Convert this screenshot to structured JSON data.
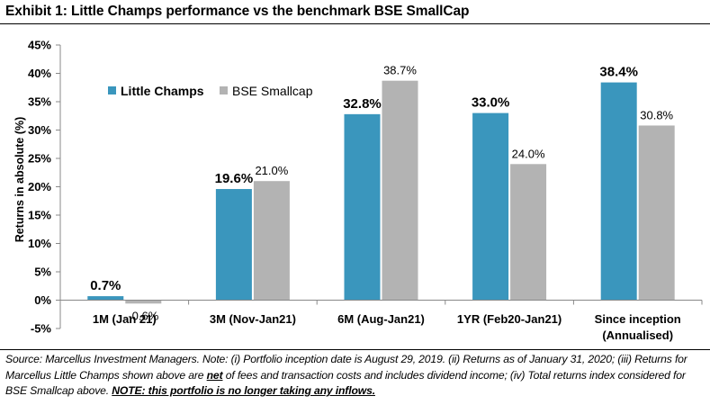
{
  "title": "Exhibit 1: Little Champs performance vs the benchmark BSE SmallCap",
  "footnote": {
    "part1": "Source: Marcellus Investment Managers. Note: (i) Portfolio inception date is August 29, 2019. (ii) Returns as of January 31, 2020; (iii) Returns for Marcellus Little Champs shown above are ",
    "net": "net",
    "part2": " of fees and transaction costs and includes dividend income; (iv) Total returns index considered for BSE Smallcap above. ",
    "note": "NOTE: this portfolio is no longer taking any inflows."
  },
  "colors": {
    "little_champs": "#3A96BD",
    "bse_smallcap": "#B3B3B3"
  },
  "chart_data": {
    "type": "bar",
    "ylabel": "Returns  in absolute (%)",
    "ylim": [
      -5,
      45
    ],
    "yticks": [
      -5,
      0,
      5,
      10,
      15,
      20,
      25,
      30,
      35,
      40,
      45
    ],
    "ytick_labels": [
      "-5%",
      "0%",
      "5%",
      "10%",
      "15%",
      "20%",
      "25%",
      "30%",
      "35%",
      "40%",
      "45%"
    ],
    "grid": false,
    "legend": "upper-left",
    "categories": [
      [
        "1M (Jan 21)"
      ],
      [
        "3M (Nov-Jan21)"
      ],
      [
        "6M (Aug-Jan21)"
      ],
      [
        "1YR (Feb20-Jan21)"
      ],
      [
        "Since inception",
        "(Annualised)"
      ]
    ],
    "series": [
      {
        "name": "Little Champs",
        "values": [
          0.7,
          19.6,
          32.8,
          33.0,
          38.4
        ],
        "labels": [
          "0.7%",
          "19.6%",
          "32.8%",
          "33.0%",
          "38.4%"
        ]
      },
      {
        "name": "BSE Smallcap",
        "values": [
          -0.6,
          21.0,
          38.7,
          24.0,
          30.8
        ],
        "labels": [
          "-0.6%",
          "21.0%",
          "38.7%",
          "24.0%",
          "30.8%"
        ]
      }
    ]
  }
}
